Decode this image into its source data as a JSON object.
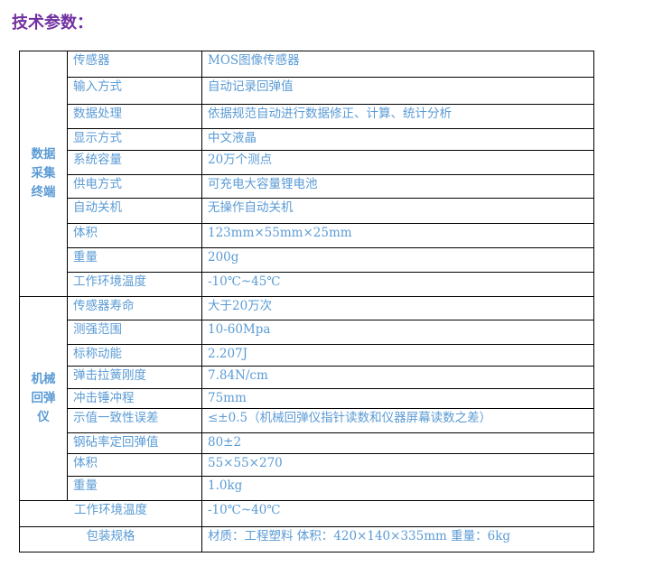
{
  "title": "技术参数：",
  "groups": [
    {
      "label": "数据采集终端",
      "rows": [
        {
          "k": "传感器",
          "v": "MOS图像传感器"
        },
        {
          "k": "输入方式",
          "v": "自动记录回弹值"
        },
        {
          "k": "数据处理",
          "v": "依据规范自动进行数据修正、计算、统计分析"
        },
        {
          "k": "显示方式",
          "v": "中文液晶"
        },
        {
          "k": "系统容量",
          "v": "20万个测点"
        },
        {
          "k": "供电方式",
          "v": "可充电大容量锂电池"
        },
        {
          "k": "自动关机",
          "v": "无操作自动关机"
        },
        {
          "k": "体积",
          "v": "123mm×55mm×25mm"
        },
        {
          "k": "重量",
          "v": "200g"
        },
        {
          "k": "工作环境温度",
          "v": "-10℃~45℃"
        }
      ]
    },
    {
      "label": "机械回弹仪",
      "rows": [
        {
          "k": "传感器寿命",
          "v": "大于20万次"
        },
        {
          "k": "测强范围",
          "v": "10-60Mpa"
        },
        {
          "k": "标称动能",
          "v": "2.207J"
        },
        {
          "k": "弹击拉簧刚度",
          "v": "7.84N/cm"
        },
        {
          "k": "冲击锤冲程",
          "v": "75mm"
        },
        {
          "k": "示值一致性误差",
          "v": "≤±0.5（机械回弹仪指针读数和仪器屏幕读数之差）"
        },
        {
          "k": "钢砧率定回弹值",
          "v": "80±2"
        },
        {
          "k": "体积",
          "v": "55×55×270"
        },
        {
          "k": "重量",
          "v": "1.0kg"
        }
      ]
    }
  ],
  "footer_rows": [
    {
      "k": "工作环境温度",
      "v": "-10℃~40℃"
    },
    {
      "k": "包装规格",
      "v": "材质：工程塑料   体积：420×140×335mm   重量：6kg"
    }
  ]
}
